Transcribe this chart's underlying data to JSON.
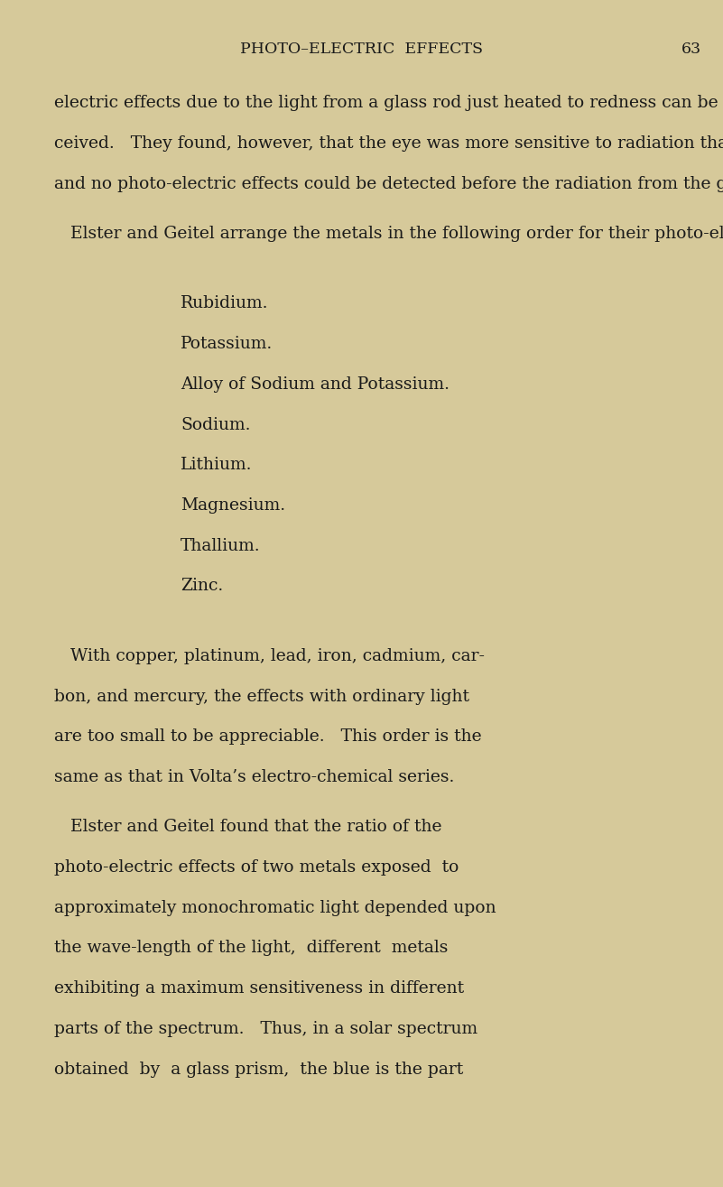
{
  "background_color": "#d6c99a",
  "text_color": "#1a1a1a",
  "page_width": 8.01,
  "page_height": 13.15,
  "header_text": "PHOTO–ELECTRIC  EFFECTS",
  "page_number": "63",
  "body_font_size": 13.5,
  "header_font_size": 12.5,
  "list_items": [
    "Rubidium.",
    "Potassium.",
    "Alloy of Sodium and Potassium.",
    "Sodium.",
    "Lithium.",
    "Magnesium.",
    "Thallium.",
    "Zinc."
  ],
  "para1_lines": [
    "electric effects due to the light from a glass rod just heated to redness can be distinctly per-",
    "ceived.   They found, however, that the eye was more sensitive to radiation than the rubidium cell,",
    "and no photo-electric effects could be detected before the radiation from the glass rod was visible."
  ],
  "para2_lines": [
    "   Elster and Geitel arrange the metals in the following order for their photo-electric effects :"
  ],
  "para3_lines": [
    "   With copper, platinum, lead, iron, cadmium, car-",
    "bon, and mercury, the effects with ordinary light",
    "are too small to be appreciable.   This order is the",
    "same as that in Volta’s electro-chemical series."
  ],
  "para4_lines": [
    "   Elster and Geitel found that the ratio of the",
    "photo-electric effects of two metals exposed  to",
    "approximately monochromatic light depended upon",
    "the wave-length of the light,  different  metals",
    "exhibiting a maximum sensitiveness in different",
    "parts of the spectrum.   Thus, in a solar spectrum",
    "obtained  by  a glass prism,  the blue is the part"
  ]
}
